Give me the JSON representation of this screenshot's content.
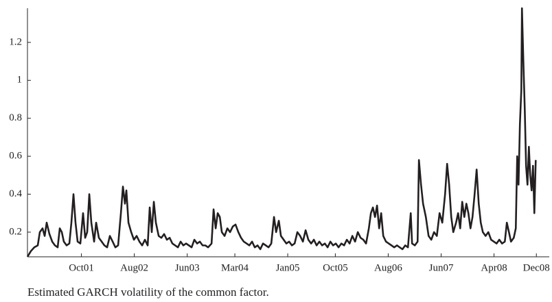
{
  "chart_data": {
    "type": "line",
    "caption": "Estimated GARCH volatility of the common factor.",
    "color": "#231f20",
    "xlim": [
      2000.9,
      2009.12
    ],
    "ylim": [
      0.07,
      1.38
    ],
    "yticks": [
      0.2,
      0.4,
      0.6,
      0.8,
      1,
      1.2
    ],
    "xticks": [
      {
        "value": 2001.75,
        "label": "Oct01"
      },
      {
        "value": 2002.583,
        "label": "Aug02"
      },
      {
        "value": 2003.417,
        "label": "Jun03"
      },
      {
        "value": 2004.167,
        "label": "Mar04"
      },
      {
        "value": 2005.0,
        "label": "Jan05"
      },
      {
        "value": 2005.75,
        "label": "Oct05"
      },
      {
        "value": 2006.583,
        "label": "Aug06"
      },
      {
        "value": 2007.417,
        "label": "Jun07"
      },
      {
        "value": 2008.25,
        "label": "Apr08"
      },
      {
        "value": 2008.917,
        "label": "Dec08"
      }
    ],
    "x": [
      2000.9,
      2000.954,
      2001.008,
      2001.062,
      2001.095,
      2001.138,
      2001.171,
      2001.203,
      2001.246,
      2001.29,
      2001.333,
      2001.376,
      2001.409,
      2001.441,
      2001.473,
      2001.517,
      2001.56,
      2001.592,
      2001.625,
      2001.657,
      2001.69,
      2001.733,
      2001.776,
      2001.809,
      2001.841,
      2001.874,
      2001.906,
      2001.95,
      2001.982,
      2002.025,
      2002.069,
      2002.112,
      2002.155,
      2002.198,
      2002.242,
      2002.285,
      2002.328,
      2002.372,
      2002.404,
      2002.436,
      2002.458,
      2002.491,
      2002.534,
      2002.577,
      2002.62,
      2002.664,
      2002.707,
      2002.75,
      2002.794,
      2002.826,
      2002.858,
      2002.891,
      2002.923,
      2002.967,
      2003.01,
      2003.053,
      2003.096,
      2003.14,
      2003.183,
      2003.226,
      2003.27,
      2003.313,
      2003.356,
      2003.399,
      2003.443,
      2003.486,
      2003.529,
      2003.573,
      2003.616,
      2003.659,
      2003.702,
      2003.746,
      2003.8,
      2003.832,
      2003.865,
      2003.897,
      2003.93,
      2003.962,
      2004.005,
      2004.049,
      2004.092,
      2004.135,
      2004.178,
      2004.222,
      2004.265,
      2004.308,
      2004.352,
      2004.395,
      2004.438,
      2004.481,
      2004.525,
      2004.568,
      2004.611,
      2004.655,
      2004.698,
      2004.741,
      2004.784,
      2004.817,
      2004.86,
      2004.893,
      2004.936,
      2004.979,
      2005.022,
      2005.066,
      2005.109,
      2005.152,
      2005.196,
      2005.239,
      2005.282,
      2005.325,
      2005.369,
      2005.412,
      2005.455,
      2005.499,
      2005.542,
      2005.585,
      2005.628,
      2005.672,
      2005.715,
      2005.758,
      2005.801,
      2005.845,
      2005.888,
      2005.931,
      2005.975,
      2006.018,
      2006.061,
      2006.104,
      2006.148,
      2006.191,
      2006.234,
      2006.278,
      2006.31,
      2006.342,
      2006.375,
      2006.407,
      2006.44,
      2006.472,
      2006.505,
      2006.548,
      2006.591,
      2006.635,
      2006.678,
      2006.721,
      2006.764,
      2006.808,
      2006.851,
      2006.894,
      2006.938,
      2006.959,
      2007.002,
      2007.046,
      2007.067,
      2007.1,
      2007.132,
      2007.176,
      2007.219,
      2007.262,
      2007.305,
      2007.349,
      2007.392,
      2007.435,
      2007.479,
      2007.511,
      2007.543,
      2007.576,
      2007.608,
      2007.652,
      2007.684,
      2007.717,
      2007.749,
      2007.782,
      2007.814,
      2007.846,
      2007.879,
      2007.911,
      2007.944,
      2007.976,
      2008.009,
      2008.041,
      2008.074,
      2008.117,
      2008.16,
      2008.204,
      2008.247,
      2008.29,
      2008.333,
      2008.377,
      2008.42,
      2008.452,
      2008.485,
      2008.517,
      2008.561,
      2008.593,
      2008.615,
      2008.636,
      2008.658,
      2008.68,
      2008.69,
      2008.712,
      2008.734,
      2008.755,
      2008.777,
      2008.799,
      2008.82,
      2008.842,
      2008.864,
      2008.885,
      2008.907
    ],
    "values": [
      0.07,
      0.1,
      0.12,
      0.13,
      0.2,
      0.22,
      0.18,
      0.25,
      0.19,
      0.15,
      0.13,
      0.12,
      0.22,
      0.2,
      0.15,
      0.13,
      0.14,
      0.25,
      0.4,
      0.25,
      0.15,
      0.14,
      0.3,
      0.17,
      0.2,
      0.4,
      0.25,
      0.15,
      0.25,
      0.17,
      0.15,
      0.13,
      0.12,
      0.18,
      0.15,
      0.12,
      0.13,
      0.3,
      0.44,
      0.35,
      0.42,
      0.25,
      0.2,
      0.16,
      0.18,
      0.15,
      0.13,
      0.16,
      0.13,
      0.33,
      0.2,
      0.36,
      0.25,
      0.18,
      0.17,
      0.19,
      0.16,
      0.17,
      0.14,
      0.13,
      0.12,
      0.15,
      0.13,
      0.14,
      0.13,
      0.12,
      0.16,
      0.14,
      0.15,
      0.13,
      0.13,
      0.12,
      0.14,
      0.32,
      0.22,
      0.3,
      0.28,
      0.2,
      0.18,
      0.22,
      0.2,
      0.23,
      0.24,
      0.2,
      0.17,
      0.15,
      0.14,
      0.13,
      0.15,
      0.12,
      0.13,
      0.11,
      0.14,
      0.13,
      0.12,
      0.14,
      0.28,
      0.2,
      0.26,
      0.18,
      0.16,
      0.14,
      0.15,
      0.13,
      0.14,
      0.2,
      0.18,
      0.15,
      0.21,
      0.16,
      0.14,
      0.16,
      0.13,
      0.15,
      0.13,
      0.14,
      0.12,
      0.15,
      0.13,
      0.14,
      0.12,
      0.14,
      0.13,
      0.16,
      0.14,
      0.18,
      0.15,
      0.2,
      0.17,
      0.16,
      0.14,
      0.22,
      0.3,
      0.33,
      0.28,
      0.34,
      0.22,
      0.3,
      0.18,
      0.15,
      0.14,
      0.13,
      0.12,
      0.13,
      0.12,
      0.11,
      0.13,
      0.12,
      0.3,
      0.14,
      0.13,
      0.15,
      0.58,
      0.45,
      0.35,
      0.28,
      0.18,
      0.16,
      0.2,
      0.18,
      0.3,
      0.25,
      0.4,
      0.56,
      0.45,
      0.28,
      0.2,
      0.25,
      0.3,
      0.22,
      0.36,
      0.28,
      0.35,
      0.3,
      0.22,
      0.28,
      0.4,
      0.53,
      0.35,
      0.25,
      0.2,
      0.18,
      0.2,
      0.16,
      0.15,
      0.14,
      0.16,
      0.14,
      0.15,
      0.25,
      0.2,
      0.15,
      0.17,
      0.22,
      0.6,
      0.45,
      0.77,
      0.95,
      1.38,
      1.1,
      0.85,
      0.55,
      0.45,
      0.65,
      0.5,
      0.42,
      0.55,
      0.3,
      0.58
    ]
  }
}
